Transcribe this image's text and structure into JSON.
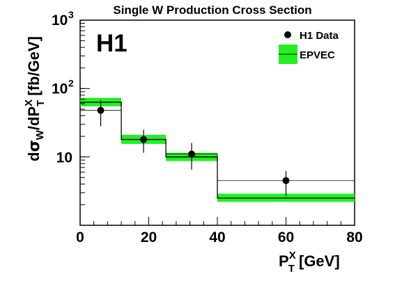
{
  "chart_data": {
    "type": "histogram",
    "title": "Single W Production Cross Section",
    "logo": "H1",
    "xlabel": {
      "main": "P",
      "sup": "X",
      "sub": "T",
      "unit": " [GeV]"
    },
    "ylabel": {
      "d1": "d",
      "sigma": "σ",
      "sub_w": "W",
      "slash": "/dP",
      "sup": "X",
      "sub": "T",
      "unit": " [fb/GeV]"
    },
    "xlim": [
      0,
      80
    ],
    "ylim": [
      1,
      1000
    ],
    "yscale": "log",
    "x_ticks": [
      0,
      20,
      40,
      60,
      80
    ],
    "x_tick_labels": [
      "0",
      "20",
      "40",
      "60",
      "80"
    ],
    "y_ticks": [
      {
        "value": 10,
        "base": "10",
        "exp": ""
      },
      {
        "value": 100,
        "base": "10",
        "exp": "2"
      },
      {
        "value": 1000,
        "base": "10",
        "exp": "3"
      }
    ],
    "legend": {
      "position": "top-right",
      "entries": [
        {
          "label": "H1 Data",
          "kind": "marker"
        },
        {
          "label": "EPVEC",
          "kind": "band"
        }
      ]
    },
    "epvec": [
      {
        "xlo": 0,
        "xhi": 12,
        "value": 63,
        "band_lo": 55,
        "band_hi": 73
      },
      {
        "xlo": 12,
        "xhi": 25,
        "value": 18,
        "band_lo": 15.5,
        "band_hi": 21
      },
      {
        "xlo": 25,
        "xhi": 40,
        "value": 10,
        "band_lo": 8.7,
        "band_hi": 11.5
      },
      {
        "xlo": 40,
        "xhi": 80,
        "value": 2.5,
        "band_lo": 2.2,
        "band_hi": 2.9
      }
    ],
    "data_histogram": [
      {
        "xlo": 0,
        "xhi": 12,
        "value": 48
      },
      {
        "xlo": 12,
        "xhi": 25,
        "value": 18
      },
      {
        "xlo": 25,
        "xhi": 40,
        "value": 11
      },
      {
        "xlo": 40,
        "xhi": 80,
        "value": 4.5
      }
    ],
    "data_points": [
      {
        "x": 6,
        "y": 48,
        "ylo": 28,
        "yhi": 68
      },
      {
        "x": 18.5,
        "y": 18,
        "ylo": 11.5,
        "yhi": 25
      },
      {
        "x": 32.5,
        "y": 11,
        "ylo": 6.5,
        "yhi": 16
      },
      {
        "x": 60,
        "y": 4.5,
        "ylo": 2.7,
        "yhi": 6.2
      }
    ],
    "colors": {
      "band": "#22f022",
      "line": "#000000",
      "marker": "#000000"
    }
  }
}
